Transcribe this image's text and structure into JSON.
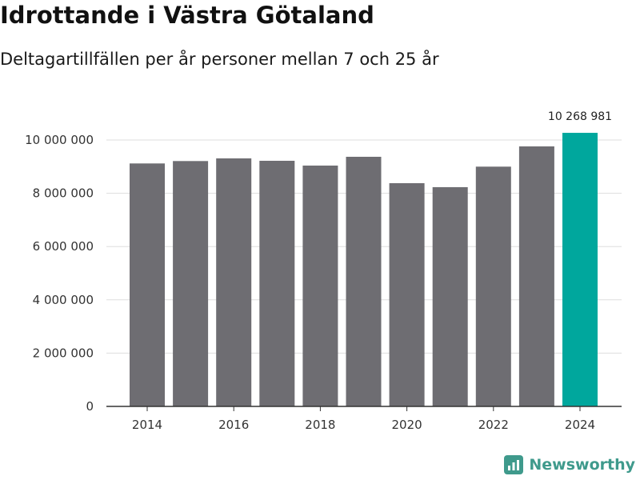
{
  "header": {
    "title": "Idrottande i Västra Götaland",
    "subtitle": "Deltagartillfällen per år personer mellan 7 och 25 år"
  },
  "brand": {
    "name": "Newsworthy"
  },
  "colors": {
    "bar": "#6e6d72",
    "highlight": "#00a79d",
    "grid": "#dddddd",
    "axis": "#333333",
    "brand": "#3f9a8c"
  },
  "chart_data": {
    "type": "bar",
    "title": "Idrottande i Västra Götaland",
    "subtitle": "Deltagartillfällen per år personer mellan 7 och 25 år",
    "xlabel": "",
    "ylabel": "",
    "categories": [
      "2014",
      "2015",
      "2016",
      "2017",
      "2018",
      "2019",
      "2020",
      "2021",
      "2022",
      "2023",
      "2024"
    ],
    "values": [
      9120000,
      9210000,
      9310000,
      9220000,
      9040000,
      9370000,
      8380000,
      8230000,
      9000000,
      9760000,
      10268981
    ],
    "ylim": [
      0,
      10000000
    ],
    "yticks": [
      0,
      2000000,
      4000000,
      6000000,
      8000000,
      10000000
    ],
    "ytick_labels": [
      "0",
      "2 000 000",
      "4 000 000",
      "6 000 000",
      "8 000 000",
      "10 000 000"
    ],
    "xtick_labels": [
      "2014",
      "2016",
      "2018",
      "2020",
      "2022",
      "2024"
    ],
    "highlight_category": "2024",
    "data_label": "10 268 981",
    "grid": true
  }
}
